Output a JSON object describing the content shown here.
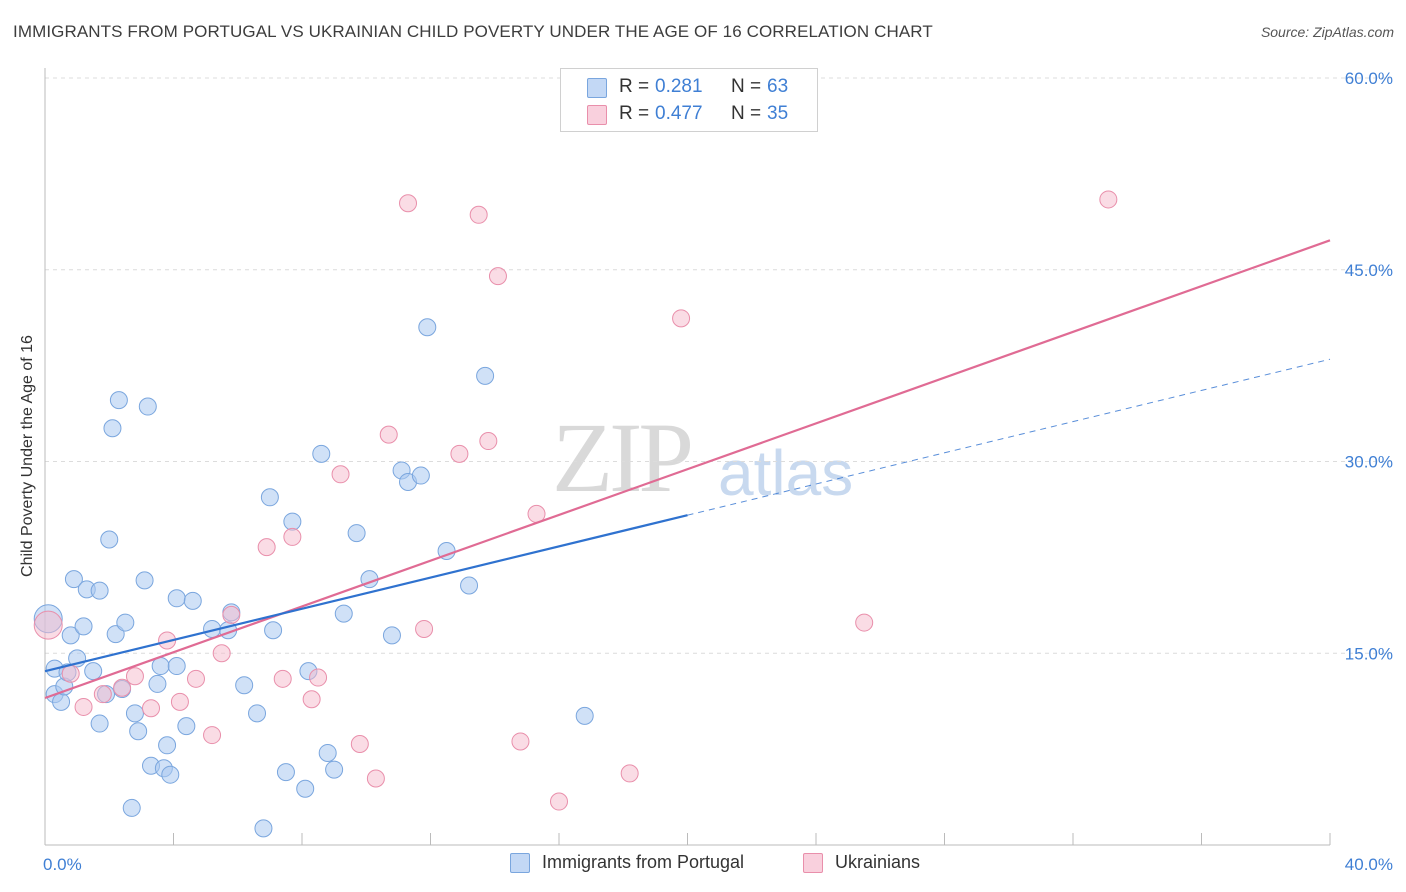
{
  "header": {
    "title": "IMMIGRANTS FROM PORTUGAL VS UKRAINIAN CHILD POVERTY UNDER THE AGE OF 16 CORRELATION CHART",
    "source": "Source: ZipAtlas.com"
  },
  "watermark": {
    "zip": "ZIP",
    "atlas": "atlas"
  },
  "legend": {
    "rows": [
      {
        "r_label": "R =",
        "r_value": "0.281",
        "n_label": "N =",
        "n_value": "63",
        "color": "#a9c8f0"
      },
      {
        "r_label": "R =",
        "r_value": "0.477",
        "n_label": "N =",
        "n_value": "35",
        "color": "#f6b9cc"
      }
    ]
  },
  "bottom_legend": {
    "series1": "Immigrants from Portugal",
    "series2": "Ukrainians"
  },
  "colors": {
    "blue_fill": "#a9c8f0",
    "blue_stroke": "#7aa6de",
    "blue_line": "#2f72cf",
    "pink_fill": "#f6b9cc",
    "pink_stroke": "#e98fab",
    "pink_line": "#e06b94",
    "tick_label": "#3f7fd4"
  },
  "chart_data": {
    "type": "scatter",
    "title": "IMMIGRANTS FROM PORTUGAL VS UKRAINIAN CHILD POVERTY UNDER THE AGE OF 16 CORRELATION CHART",
    "xlabel": "",
    "ylabel": "Child Poverty Under the Age of 16",
    "xlim": [
      0,
      40
    ],
    "ylim": [
      0,
      60
    ],
    "x_tick_labels": [
      "0.0%",
      "40.0%"
    ],
    "y_ticks": [
      15,
      30,
      45,
      60
    ],
    "y_tick_labels": [
      "15.0%",
      "30.0%",
      "45.0%",
      "60.0%"
    ],
    "grid": true,
    "series": [
      {
        "name": "Immigrants from Portugal",
        "points": [
          [
            0.3,
            11.8
          ],
          [
            0.3,
            13.8
          ],
          [
            0.5,
            11.2
          ],
          [
            0.6,
            12.4
          ],
          [
            0.7,
            13.5
          ],
          [
            0.8,
            16.4
          ],
          [
            0.9,
            20.8
          ],
          [
            1.0,
            14.6
          ],
          [
            1.2,
            17.1
          ],
          [
            1.3,
            20.0
          ],
          [
            1.5,
            13.6
          ],
          [
            1.7,
            9.5
          ],
          [
            1.7,
            19.9
          ],
          [
            1.9,
            11.8
          ],
          [
            2.0,
            23.9
          ],
          [
            2.1,
            32.6
          ],
          [
            2.2,
            16.5
          ],
          [
            2.3,
            34.8
          ],
          [
            2.4,
            12.2
          ],
          [
            2.5,
            17.4
          ],
          [
            2.7,
            2.9
          ],
          [
            2.8,
            10.3
          ],
          [
            2.9,
            8.9
          ],
          [
            3.1,
            20.7
          ],
          [
            3.2,
            34.3
          ],
          [
            3.3,
            6.2
          ],
          [
            3.5,
            12.6
          ],
          [
            3.6,
            14.0
          ],
          [
            3.7,
            6.0
          ],
          [
            3.8,
            7.8
          ],
          [
            3.9,
            5.5
          ],
          [
            4.1,
            19.3
          ],
          [
            4.1,
            14.0
          ],
          [
            4.4,
            9.3
          ],
          [
            4.6,
            19.1
          ],
          [
            5.2,
            16.9
          ],
          [
            5.7,
            16.8
          ],
          [
            5.8,
            18.2
          ],
          [
            6.2,
            12.5
          ],
          [
            6.6,
            10.3
          ],
          [
            6.8,
            1.3
          ],
          [
            7.0,
            27.2
          ],
          [
            7.1,
            16.8
          ],
          [
            7.5,
            5.7
          ],
          [
            7.7,
            25.3
          ],
          [
            8.1,
            4.4
          ],
          [
            8.2,
            13.6
          ],
          [
            8.6,
            30.6
          ],
          [
            8.8,
            7.2
          ],
          [
            9.0,
            5.9
          ],
          [
            9.3,
            18.1
          ],
          [
            9.7,
            24.4
          ],
          [
            10.1,
            20.8
          ],
          [
            10.8,
            16.4
          ],
          [
            11.1,
            29.3
          ],
          [
            11.3,
            28.4
          ],
          [
            11.7,
            28.9
          ],
          [
            11.9,
            40.5
          ],
          [
            12.5,
            23.0
          ],
          [
            13.2,
            20.3
          ],
          [
            13.7,
            36.7
          ],
          [
            16.8,
            10.1
          ],
          [
            0.1,
            17.7
          ]
        ],
        "trend": {
          "x": [
            0,
            20
          ],
          "y": [
            13.6,
            25.8
          ]
        },
        "trend_extended": {
          "x": [
            20,
            40
          ],
          "y": [
            25.8,
            38.0
          ]
        }
      },
      {
        "name": "Ukrainians",
        "points": [
          [
            0.1,
            17.2
          ],
          [
            0.8,
            13.4
          ],
          [
            1.2,
            10.8
          ],
          [
            1.8,
            11.8
          ],
          [
            2.4,
            12.3
          ],
          [
            2.8,
            13.2
          ],
          [
            3.3,
            10.7
          ],
          [
            3.8,
            16.0
          ],
          [
            4.2,
            11.2
          ],
          [
            4.7,
            13.0
          ],
          [
            5.2,
            8.6
          ],
          [
            5.5,
            15.0
          ],
          [
            5.8,
            18.0
          ],
          [
            6.9,
            23.3
          ],
          [
            7.4,
            13.0
          ],
          [
            7.7,
            24.1
          ],
          [
            8.3,
            11.4
          ],
          [
            8.5,
            13.1
          ],
          [
            9.2,
            29.0
          ],
          [
            9.8,
            7.9
          ],
          [
            10.3,
            5.2
          ],
          [
            10.7,
            32.1
          ],
          [
            11.3,
            50.2
          ],
          [
            11.8,
            16.9
          ],
          [
            12.9,
            30.6
          ],
          [
            13.5,
            49.3
          ],
          [
            13.8,
            31.6
          ],
          [
            14.1,
            44.5
          ],
          [
            14.8,
            8.1
          ],
          [
            15.3,
            25.9
          ],
          [
            16.0,
            3.4
          ],
          [
            18.2,
            5.6
          ],
          [
            19.8,
            41.2
          ],
          [
            25.5,
            17.4
          ],
          [
            33.1,
            50.5
          ]
        ],
        "trend": {
          "x": [
            0,
            40
          ],
          "y": [
            11.5,
            47.3
          ]
        }
      }
    ]
  }
}
